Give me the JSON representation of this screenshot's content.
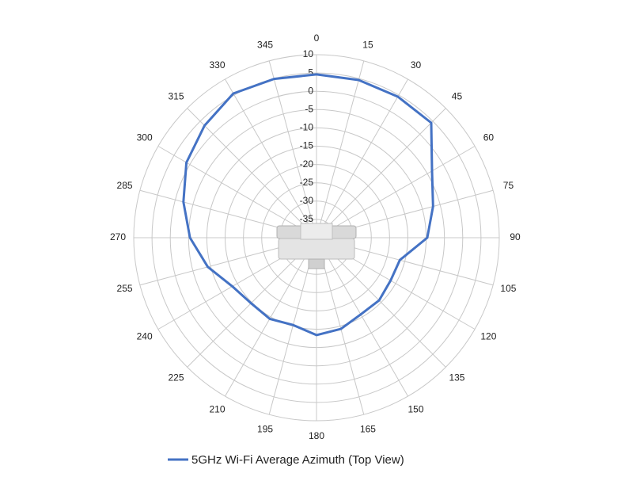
{
  "chart_data": {
    "type": "polar-line",
    "angles": [
      0,
      15,
      30,
      45,
      60,
      75,
      90,
      105,
      120,
      135,
      150,
      165,
      180,
      195,
      210,
      225,
      240,
      255,
      270,
      285,
      300,
      315,
      330,
      345
    ],
    "rlim": [
      -40,
      10
    ],
    "rticks": [
      10,
      5,
      0,
      -5,
      -10,
      -15,
      -20,
      -25,
      -30,
      -35
    ],
    "series": [
      {
        "name": "5GHz Wi-Fi Average Azimuth (Top View)",
        "color": "#4472c4",
        "values": [
          4.6,
          4.6,
          4.5,
          4.4,
          -3.5,
          -7,
          -9.7,
          -16.4,
          -16.6,
          -15.8,
          -15.8,
          -14.2,
          -13.4,
          -15.3,
          -14.4,
          -14.7,
          -13.4,
          -9.2,
          -5.4,
          -2.3,
          1.1,
          3.3,
          5.5,
          4.9
        ]
      }
    ],
    "grid": true,
    "legend": "bottom"
  }
}
